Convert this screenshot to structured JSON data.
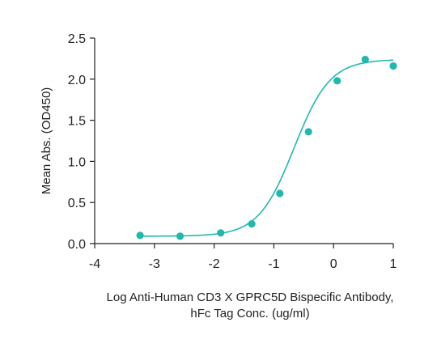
{
  "chart_data": {
    "type": "scatter",
    "xlabel_lines": [
      "Log Anti-Human CD3 X GPRC5D Bispecific Antibody,",
      "hFc Tag Conc. (ug/ml)"
    ],
    "ylabel": "Mean Abs. (OD450)",
    "xlim": [
      -4,
      1
    ],
    "ylim": [
      0,
      2.5
    ],
    "x_ticks": [
      -4,
      -3,
      -2,
      -1,
      0,
      1
    ],
    "x_tick_labels": [
      "-4",
      "-3",
      "-2",
      "-1",
      "0",
      "1"
    ],
    "y_ticks": [
      0,
      0.5,
      1,
      1.5,
      2,
      2.5
    ],
    "y_tick_labels": [
      "0.0",
      "0.5",
      "1.0",
      "1.5",
      "2.0",
      "2.5"
    ],
    "grid": false,
    "color": "#21b8ae",
    "series": [
      {
        "x": [
          -3.24,
          -2.57,
          -1.89,
          -1.37,
          -0.9,
          -0.42,
          0.06,
          0.53,
          1.0
        ],
        "y": [
          0.1,
          0.09,
          0.13,
          0.24,
          0.61,
          1.36,
          1.98,
          2.24,
          2.16
        ],
        "fit": {
          "model": "4PL",
          "bottom": 0.09,
          "top": 2.24,
          "log_ec50": -0.66,
          "hill": 1.45
        }
      }
    ]
  }
}
